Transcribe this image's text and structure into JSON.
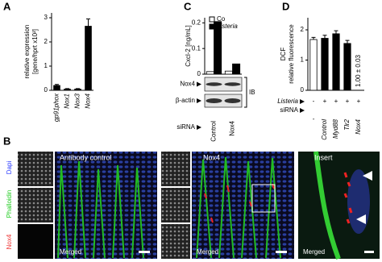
{
  "panels": [
    "A",
    "C",
    "D",
    "B"
  ],
  "chart_data": [
    {
      "type": "bar",
      "ylabel": [
        "relative expression",
        "[gene/hprt x10²]"
      ],
      "categories": [
        "gp91phox",
        "Nox1",
        "Nox3",
        "Nox4"
      ],
      "values": [
        0.2,
        0.05,
        0.05,
        2.65
      ],
      "errors": [
        0.04,
        0.02,
        0.02,
        0.3
      ],
      "color": "#000000",
      "ylim": [
        0,
        3.2
      ],
      "yticks": [
        0,
        1,
        2,
        3
      ]
    },
    {
      "type": "bar",
      "ylabel": [
        "Cxcl-2 [ng/mL]"
      ],
      "categories": [
        "Control",
        "Nox4"
      ],
      "series": [
        {
          "name": "Co",
          "color": "#ffffff",
          "values": [
            0.01,
            0.012
          ]
        },
        {
          "name": "Listeria",
          "color": "#000000",
          "values": [
            0.205,
            0.04
          ]
        }
      ],
      "ylim": [
        0,
        0.22
      ],
      "yticks": [
        0,
        0.1,
        0.2
      ],
      "legend": "upper right",
      "blot": {
        "labels": [
          "Nox4",
          "β-actin"
        ],
        "method": "IB",
        "row_label": "siRNA"
      }
    },
    {
      "type": "bar",
      "ylabel": [
        "DCF",
        "relative fluorescence"
      ],
      "categories": [
        "-",
        "Control",
        "Myd88",
        "Tlr2",
        "Nox4"
      ],
      "listeria": [
        "-",
        "+",
        "+",
        "+",
        "+"
      ],
      "row_labels": [
        "Listeria",
        "siRNA"
      ],
      "values": [
        1.68,
        1.72,
        1.87,
        1.55,
        null
      ],
      "errors": [
        0.07,
        0.1,
        0.1,
        0.1,
        null
      ],
      "colors": [
        "#ffffff",
        "#000000",
        "#000000",
        "#000000",
        "#000000"
      ],
      "annotation": "1.00 ± 0.03",
      "ylim": [
        0,
        2.4
      ],
      "yticks": [
        0,
        1,
        2
      ]
    }
  ],
  "microscopy": {
    "channels": [
      "Dapi",
      "Phalloidin",
      "Nox4"
    ],
    "titles": [
      "Antibody control",
      "Nox4",
      "Insert"
    ],
    "merged": [
      "Merged",
      "Merged",
      "Merged"
    ]
  }
}
